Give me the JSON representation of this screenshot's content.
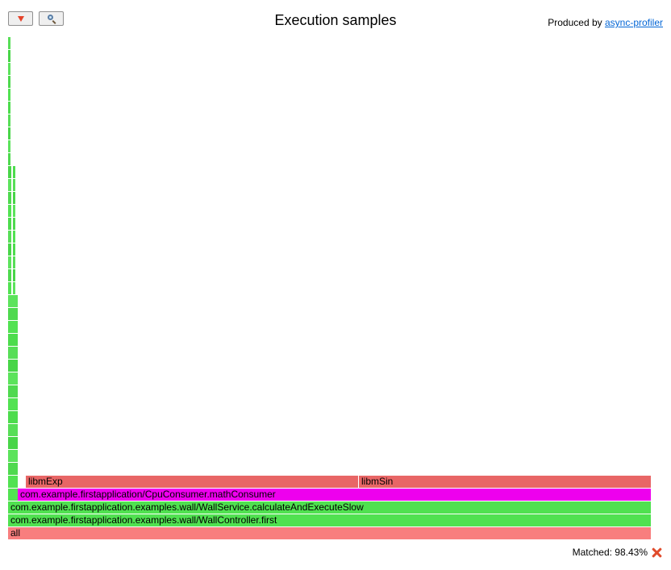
{
  "header": {
    "title": "Execution samples",
    "produced_by_prefix": "Produced by ",
    "produced_by_link": "async-profiler"
  },
  "toolbar": {
    "reverse_icon": "triangle-down-icon",
    "search_icon": "magnifier-icon"
  },
  "status": {
    "matched_label": "Matched: 98.43%",
    "reset_icon": "red-x-icon"
  },
  "colors": {
    "root": "#f87e7e",
    "java": "#50e150",
    "highlight": "#ee00ee",
    "native": "#e86666"
  },
  "flame": {
    "frames": [
      {
        "label": "all",
        "color": "root"
      },
      {
        "label": "com.example.firstapplication.examples.wall/WallController.first",
        "color": "java"
      },
      {
        "label": "com.example.firstapplication.examples.wall/WallService.calculateAndExecuteSlow",
        "color": "java"
      },
      {
        "label": "com.example.firstapplication/CpuConsumer.mathConsumer",
        "color": "highlight"
      },
      {
        "label": "libmExp",
        "color": "native"
      },
      {
        "label": "libmSin",
        "color": "native"
      }
    ]
  }
}
